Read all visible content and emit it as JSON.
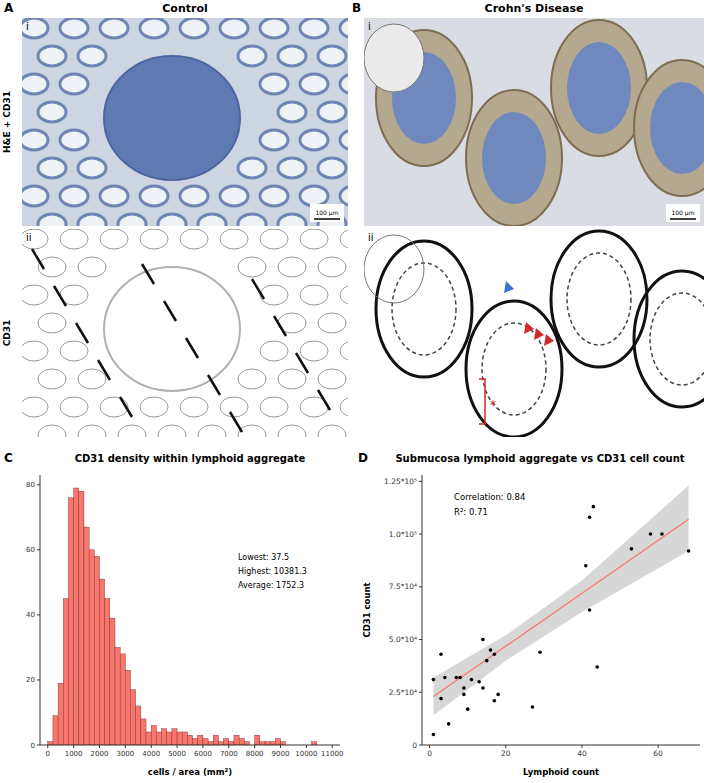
{
  "figure": {
    "panels": [
      {
        "label": "A",
        "title": "Control"
      },
      {
        "label": "B",
        "title": "Crohn's Disease"
      }
    ],
    "rows": [
      {
        "label": "i",
        "stain": "H&E + CD31"
      },
      {
        "label": "ii",
        "stain": "CD31"
      }
    ],
    "scale_bars": [
      "100 µm",
      "100 µm"
    ],
    "marker_text": "*"
  },
  "chart_data": [
    {
      "label": "C",
      "type": "histogram",
      "title": "CD31 density within lymphoid aggregate",
      "x_label": "cells / area (mm²)",
      "bins": [
        0,
        200,
        400,
        600,
        800,
        1000,
        1200,
        1400,
        1600,
        1800,
        2000,
        2200,
        2400,
        2600,
        2800,
        3000,
        3200,
        3400,
        3600,
        3800,
        4000,
        4200,
        4400,
        4600,
        4800,
        5000,
        5200,
        5400,
        5600,
        5800,
        6000,
        6200,
        6400,
        6600,
        6800,
        7000,
        7200,
        7400,
        7600,
        7800,
        8000,
        8200,
        8400,
        8600,
        8800,
        9000,
        9200,
        9400,
        9600,
        9800,
        10000,
        10200,
        10400,
        10600
      ],
      "values": [
        1,
        9,
        19,
        45,
        76,
        79,
        78,
        67,
        60,
        58,
        51,
        45,
        39,
        30,
        28,
        23,
        17,
        12,
        8,
        4,
        6,
        4,
        5,
        4,
        5,
        4,
        4,
        3,
        2,
        3,
        2,
        1,
        3,
        1,
        2,
        1,
        3,
        2,
        1,
        0,
        3,
        1,
        1,
        1,
        2,
        1,
        0,
        0,
        0,
        0,
        0,
        1,
        0
      ],
      "color": "#f8766d",
      "xlim": [
        -300,
        11300
      ],
      "ylim": [
        0,
        83
      ],
      "xticks": [
        0,
        1000,
        2000,
        3000,
        4000,
        5000,
        6000,
        7000,
        8000,
        9000,
        10000,
        11000
      ],
      "yticks": [
        0,
        20,
        40,
        60,
        80
      ],
      "annotations": [
        "Lowest:   37.5",
        "Highest:  10381.3",
        "Average:  1752.3"
      ]
    },
    {
      "label": "D",
      "type": "scatter",
      "title": "Submucosa lymphoid aggregate vs CD31 cell count",
      "x_label": "Lymphoid count",
      "y_label": "CD31 count",
      "x": [
        1,
        1,
        3,
        3,
        4,
        5,
        7,
        8,
        9,
        9,
        10,
        11,
        13,
        14,
        14,
        15,
        16,
        17,
        17,
        18,
        27,
        29,
        41,
        42,
        42,
        43,
        44,
        53,
        58,
        61,
        68
      ],
      "values": [
        5000,
        31000,
        43000,
        22000,
        32000,
        10000,
        32000,
        32000,
        24000,
        27000,
        17000,
        31000,
        30000,
        27000,
        50000,
        40000,
        45000,
        21000,
        43000,
        24000,
        18000,
        44000,
        85000,
        108000,
        64000,
        113000,
        37000,
        93000,
        100000,
        100000,
        92000
      ],
      "color": "#000000",
      "marker": "circle",
      "fit": {
        "x": [
          1,
          68
        ],
        "values": [
          23000,
          107000
        ],
        "color": "#f8766d"
      },
      "band": {
        "x": [
          1,
          20,
          40,
          68
        ],
        "lower": [
          14000,
          40000,
          63000,
          92000
        ],
        "upper": [
          32000,
          52000,
          78000,
          123000
        ]
      },
      "xlim": [
        -2,
        71
      ],
      "ylim": [
        0,
        128000
      ],
      "xticks": [
        0,
        20,
        40,
        60
      ],
      "yticks": [
        0,
        {
          "value": 25000,
          "label": "2.5*10⁴"
        },
        {
          "value": 50000,
          "label": "5.0*10⁴"
        },
        {
          "value": 75000,
          "label": "7.5*10⁴"
        },
        {
          "value": 100000,
          "label": "1.0*10⁵"
        },
        {
          "value": 125000,
          "label": "1.25*10⁵"
        }
      ],
      "annotations": [
        "Correlation:  0.84",
        "R²:  0.71"
      ]
    }
  ]
}
